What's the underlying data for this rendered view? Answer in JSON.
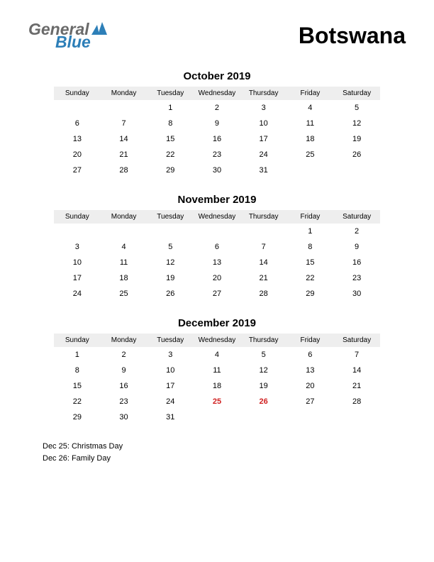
{
  "logo": {
    "word1": "General",
    "word2": "Blue",
    "word1_color": "#6a6a6a",
    "word2_color": "#2d7fb8",
    "mark_color": "#2d7fb8"
  },
  "country": "Botswana",
  "day_headers": [
    "Sunday",
    "Monday",
    "Tuesday",
    "Wednesday",
    "Thursday",
    "Friday",
    "Saturday"
  ],
  "months": [
    {
      "title": "October 2019",
      "weeks": [
        [
          "",
          "",
          "1",
          "2",
          "3",
          "4",
          "5"
        ],
        [
          "6",
          "7",
          "8",
          "9",
          "10",
          "11",
          "12"
        ],
        [
          "13",
          "14",
          "15",
          "16",
          "17",
          "18",
          "19"
        ],
        [
          "20",
          "21",
          "22",
          "23",
          "24",
          "25",
          "26"
        ],
        [
          "27",
          "28",
          "29",
          "30",
          "31",
          "",
          ""
        ]
      ],
      "holidays_idx": []
    },
    {
      "title": "November 2019",
      "weeks": [
        [
          "",
          "",
          "",
          "",
          "",
          "1",
          "2"
        ],
        [
          "3",
          "4",
          "5",
          "6",
          "7",
          "8",
          "9"
        ],
        [
          "10",
          "11",
          "12",
          "13",
          "14",
          "15",
          "16"
        ],
        [
          "17",
          "18",
          "19",
          "20",
          "21",
          "22",
          "23"
        ],
        [
          "24",
          "25",
          "26",
          "27",
          "28",
          "29",
          "30"
        ]
      ],
      "holidays_idx": []
    },
    {
      "title": "December 2019",
      "weeks": [
        [
          "1",
          "2",
          "3",
          "4",
          "5",
          "6",
          "7"
        ],
        [
          "8",
          "9",
          "10",
          "11",
          "12",
          "13",
          "14"
        ],
        [
          "15",
          "16",
          "17",
          "18",
          "19",
          "20",
          "21"
        ],
        [
          "22",
          "23",
          "24",
          "25",
          "26",
          "27",
          "28"
        ],
        [
          "29",
          "30",
          "31",
          "",
          "",
          "",
          ""
        ]
      ],
      "holidays_idx": [
        [
          3,
          3
        ],
        [
          3,
          4
        ]
      ]
    }
  ],
  "holiday_list": [
    "Dec 25: Christmas Day",
    "Dec 26: Family Day"
  ],
  "styling": {
    "page_bg": "#ffffff",
    "header_bg": "#eeeeee",
    "text_color": "#000000",
    "holiday_color": "#d02020",
    "cell_fontsize": 11,
    "header_fontsize": 10,
    "title_fontsize": 15,
    "country_fontsize": 32
  }
}
